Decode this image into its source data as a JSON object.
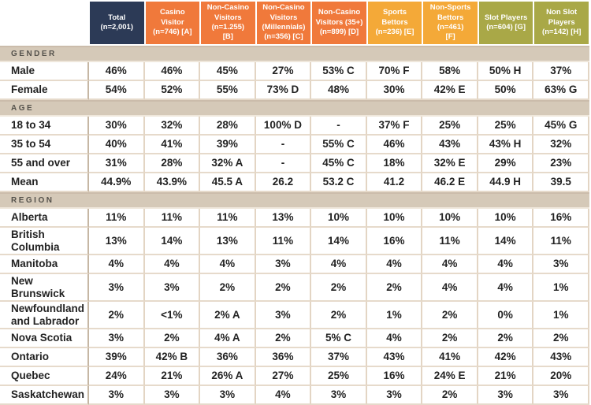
{
  "colors": {
    "total_header": "#2C3A56",
    "casino_group_header": "#F0793B",
    "bettor_group_header": "#F4A938",
    "slot_group_header": "#A9A847",
    "section_bar_bg": "#D5C9B8",
    "grid_line": "#E3D5C4",
    "header_text": "#FFFFFF",
    "body_text": "#222222"
  },
  "table": {
    "columns": [
      {
        "key": "total",
        "label": "Total\n(n=2,001)",
        "color": "#2C3A56"
      },
      {
        "key": "casino-visitor-a",
        "label": "Casino\nVisitor\n(n=746) [A]",
        "color": "#F0793B"
      },
      {
        "key": "non-casino-visitors-b",
        "label": "Non-Casino\nVisitors\n(n=1.255)\n[B]",
        "color": "#F0793B"
      },
      {
        "key": "non-casino-millennials-c",
        "label": "Non-Casino\nVisitors\n(Millennials)\n(n=356) [C]",
        "color": "#F0793B"
      },
      {
        "key": "non-casino-35plus-d",
        "label": "Non-Casino\nVisitors (35+)\n(n=899) [D]",
        "color": "#F0793B"
      },
      {
        "key": "sports-bettors-e",
        "label": "Sports\nBettors\n(n=236) [E]",
        "color": "#F4A938"
      },
      {
        "key": "non-sports-bettors-f",
        "label": "Non-Sports\nBettors (n=461)\n[F]",
        "color": "#F4A938"
      },
      {
        "key": "slot-players-g",
        "label": "Slot Players\n(n=604) [G]",
        "color": "#A9A847"
      },
      {
        "key": "non-slot-players-h",
        "label": "Non Slot\nPlayers\n(n=142) [H]",
        "color": "#A9A847"
      }
    ],
    "sections": [
      {
        "key": "gender",
        "label": "GENDER",
        "rows": [
          {
            "label": "Male",
            "values": [
              "46%",
              "46%",
              "45%",
              "27%",
              "53% C",
              "70% F",
              "58%",
              "50% H",
              "37%"
            ]
          },
          {
            "label": "Female",
            "values": [
              "54%",
              "52%",
              "55%",
              "73% D",
              "48%",
              "30%",
              "42% E",
              "50%",
              "63% G"
            ]
          }
        ]
      },
      {
        "key": "age",
        "label": "AGE",
        "rows": [
          {
            "label": "18 to 34",
            "values": [
              "30%",
              "32%",
              "28%",
              "100% D",
              "-",
              "37% F",
              "25%",
              "25%",
              "45% G"
            ]
          },
          {
            "label": "35 to 54",
            "values": [
              "40%",
              "41%",
              "39%",
              "-",
              "55% C",
              "46%",
              "43%",
              "43% H",
              "32%"
            ]
          },
          {
            "label": "55 and over",
            "values": [
              "31%",
              "28%",
              "32% A",
              "-",
              "45% C",
              "18%",
              "32% E",
              "29%",
              "23%"
            ]
          },
          {
            "label": "Mean",
            "values": [
              "44.9%",
              "43.9%",
              "45.5 A",
              "26.2",
              "53.2 C",
              "41.2",
              "46.2 E",
              "44.9 H",
              "39.5"
            ]
          }
        ]
      },
      {
        "key": "region",
        "label": "REGION",
        "rows": [
          {
            "label": "Alberta",
            "values": [
              "11%",
              "11%",
              "11%",
              "13%",
              "10%",
              "10%",
              "10%",
              "10%",
              "16%"
            ]
          },
          {
            "label": "British Columbia",
            "values": [
              "13%",
              "14%",
              "13%",
              "11%",
              "14%",
              "16%",
              "11%",
              "14%",
              "11%"
            ]
          },
          {
            "label": "Manitoba",
            "values": [
              "4%",
              "4%",
              "4%",
              "3%",
              "4%",
              "4%",
              "4%",
              "4%",
              "3%"
            ]
          },
          {
            "label": "New Brunswick",
            "values": [
              "3%",
              "3%",
              "2%",
              "2%",
              "2%",
              "2%",
              "4%",
              "4%",
              "1%"
            ]
          },
          {
            "label": "Newfoundland and Labrador",
            "values": [
              "2%",
              "<1%",
              "2% A",
              "3%",
              "2%",
              "1%",
              "2%",
              "0%",
              "1%"
            ]
          },
          {
            "label": "Nova Scotia",
            "values": [
              "3%",
              "2%",
              "4% A",
              "2%",
              "5% C",
              "4%",
              "2%",
              "2%",
              "2%"
            ]
          },
          {
            "label": "Ontario",
            "values": [
              "39%",
              "42% B",
              "36%",
              "36%",
              "37%",
              "43%",
              "41%",
              "42%",
              "43%"
            ]
          },
          {
            "label": "Quebec",
            "values": [
              "24%",
              "21%",
              "26% A",
              "27%",
              "25%",
              "16%",
              "24% E",
              "21%",
              "20%"
            ]
          },
          {
            "label": "Saskatchewan",
            "values": [
              "3%",
              "3%",
              "3%",
              "4%",
              "3%",
              "3%",
              "2%",
              "3%",
              "3%"
            ]
          }
        ]
      }
    ]
  }
}
